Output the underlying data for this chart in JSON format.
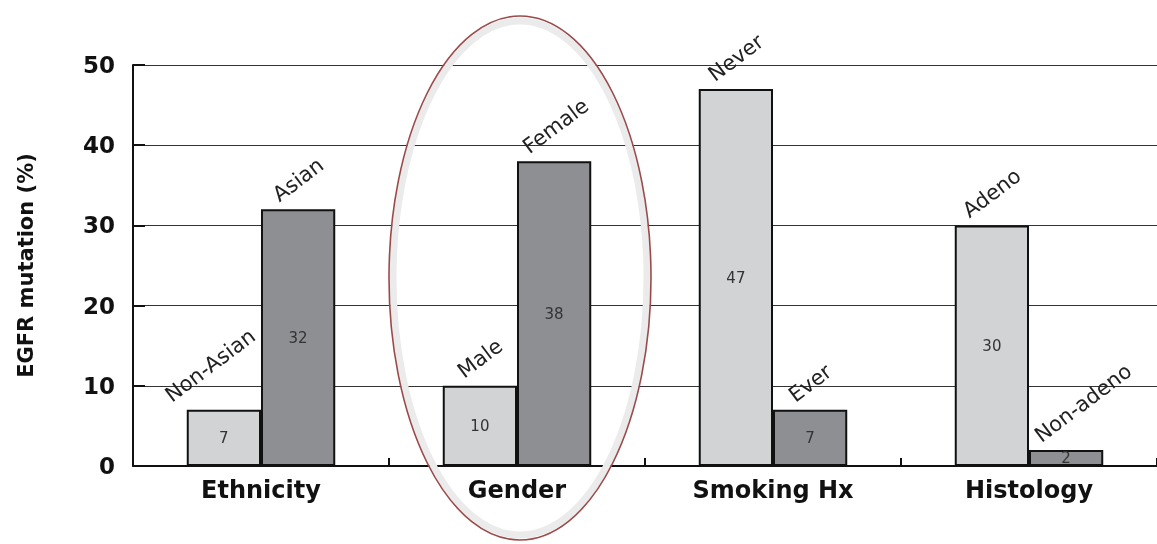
{
  "chart_data": {
    "type": "bar",
    "categories": [
      "Ethnicity",
      "Gender",
      "Smoking Hx",
      "Histology"
    ],
    "series": [
      {
        "color": "#d1d3d5",
        "values": [
          7,
          10,
          47,
          30
        ]
      },
      {
        "color": "#8e8f93",
        "values": [
          32,
          38,
          7,
          2
        ]
      }
    ],
    "ylabel": "EGFR mutation (%)",
    "ylim": [
      0,
      50
    ],
    "yticks": [
      0,
      10,
      20,
      30,
      40,
      50
    ],
    "grid": "y",
    "data_labels": true,
    "annotations": [
      {
        "text": "Non-Asian",
        "x": "Ethnicity",
        "y": 7
      },
      {
        "text": "Asian",
        "x": "Ethnicity",
        "y": 32
      },
      {
        "text": "Male",
        "x": "Gender",
        "y": 10
      },
      {
        "text": "Female",
        "x": "Gender",
        "y": 38
      },
      {
        "text": "Never",
        "x": "Smoking Hx",
        "y": 47
      },
      {
        "text": "Ever",
        "x": "Smoking Hx",
        "y": 7
      },
      {
        "text": "Adeno",
        "x": "Histology",
        "y": 30
      },
      {
        "text": "Non-adeno",
        "x": "Histology",
        "y": 2
      }
    ]
  }
}
